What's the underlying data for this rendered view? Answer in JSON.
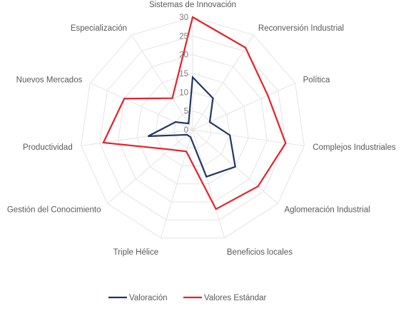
{
  "chart_data": {
    "type": "radar",
    "categories": [
      "Sistemas de Innovación",
      "Reconversión Industrial",
      "Política",
      "Complejos Industriales",
      "Aglomeración Industrial",
      "Beneficios locales",
      "Triple Hélice",
      "Gestión del Conocimiento",
      "Productividad",
      "Nuevos Mercados",
      "Especialización"
    ],
    "series": [
      {
        "name": "Valoración",
        "color": "#1f3864",
        "values": [
          14,
          10,
          5,
          10,
          15,
          13,
          2,
          2,
          12,
          5,
          2
        ]
      },
      {
        "name": "Valores Estándar",
        "color": "#e8202a",
        "values": [
          30,
          26,
          22,
          25,
          23,
          22,
          6,
          8,
          24,
          20,
          10
        ]
      }
    ],
    "r_ticks": [
      "0",
      "5",
      "10",
      "15",
      "20",
      "25",
      "30"
    ],
    "r_max": 30,
    "grid": true,
    "legend_position": "bottom"
  }
}
